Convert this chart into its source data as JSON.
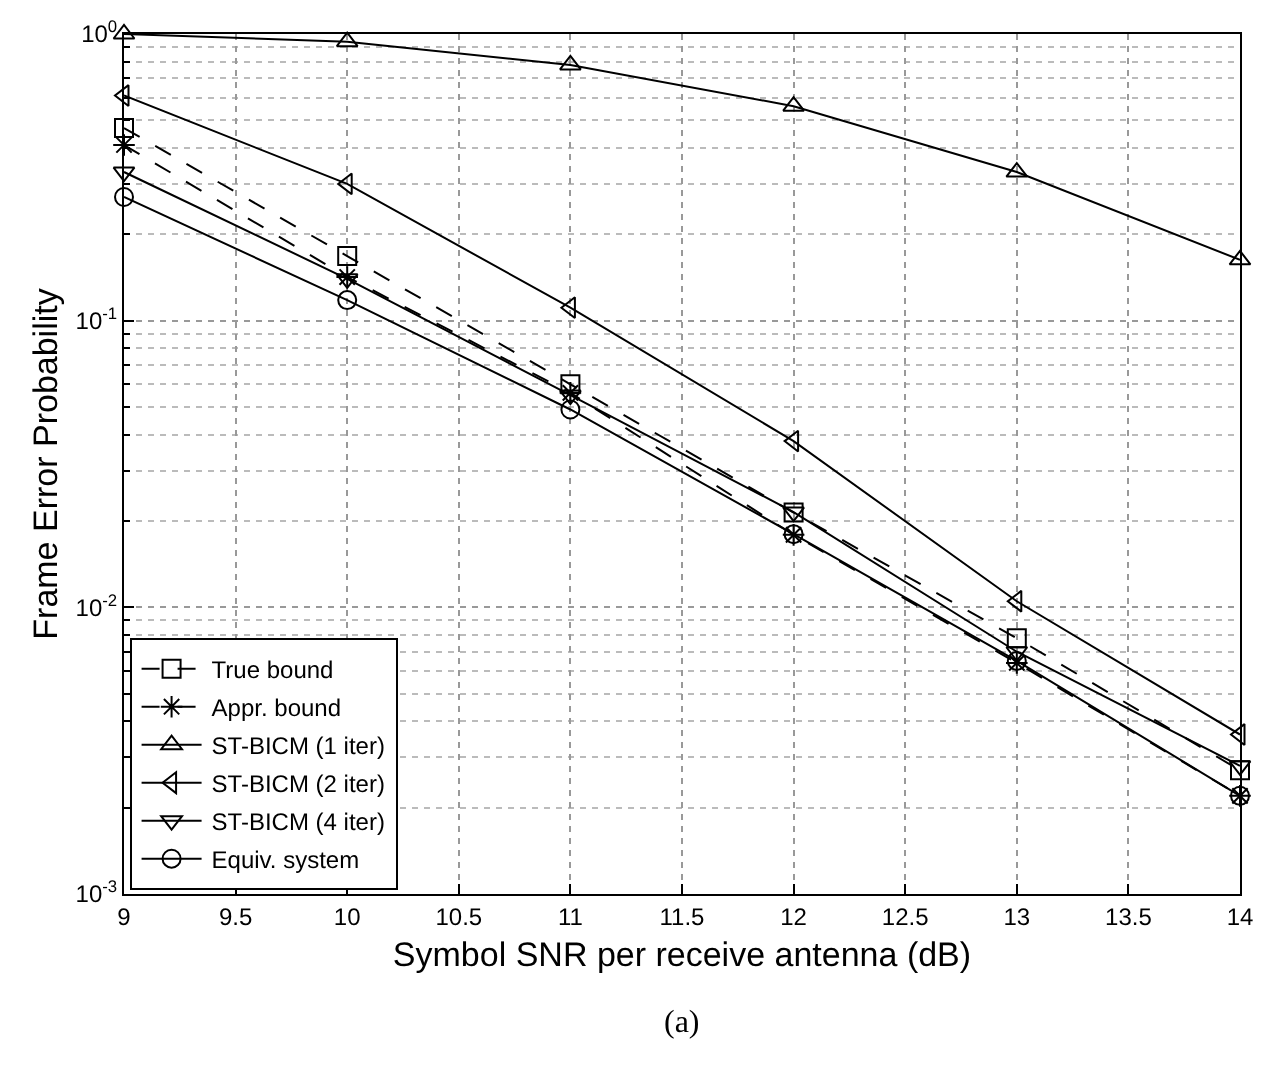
{
  "chart_data": {
    "type": "line",
    "xlabel": "Symbol SNR per receive antenna (dB)",
    "ylabel": "Frame Error Probability",
    "annotations": [
      "(a)"
    ],
    "x": [
      9,
      10,
      11,
      12,
      13,
      14
    ],
    "series": [
      {
        "name": "True bound",
        "color": "#000000",
        "line_style": "dashed",
        "marker": "square",
        "values": [
          0.47,
          0.168,
          0.06,
          0.0214,
          0.0078,
          0.0027
        ]
      },
      {
        "name": "Appr. bound",
        "color": "#000000",
        "line_style": "dashed",
        "marker": "cross",
        "values": [
          0.41,
          0.142,
          0.056,
          0.0179,
          0.0064,
          0.0022
        ]
      },
      {
        "name": "ST-BICM (1 iter)",
        "color": "#000000",
        "line_style": "solid",
        "marker": "triangle-up",
        "values": [
          1.0,
          0.94,
          0.78,
          0.56,
          0.33,
          0.163
        ]
      },
      {
        "name": "ST-BICM (2 iter)",
        "color": "#000000",
        "line_style": "solid",
        "marker": "triangle-left",
        "values": [
          0.61,
          0.3,
          0.111,
          0.038,
          0.0105,
          0.0036
        ]
      },
      {
        "name": "ST-BICM (4 iter)",
        "color": "#000000",
        "line_style": "solid",
        "marker": "triangle-down",
        "values": [
          0.33,
          0.14,
          0.055,
          0.0215,
          0.007,
          0.0028
        ]
      },
      {
        "name": "Equiv. system",
        "color": "#000000",
        "line_style": "solid",
        "marker": "circle",
        "values": [
          0.27,
          0.118,
          0.049,
          0.018,
          0.0065,
          0.0022
        ]
      }
    ],
    "log": "y",
    "xlim": [
      9,
      14
    ],
    "ylim": [
      0.001,
      1
    ],
    "xticks": [
      9,
      9.5,
      10,
      10.5,
      11,
      11.5,
      12,
      12.5,
      13,
      13.5,
      14
    ],
    "yticks": [
      {
        "value": 0.001,
        "label": "10$^{-3}$"
      },
      {
        "value": 0.01,
        "label": "10$^{-2}$"
      },
      {
        "value": 0.1,
        "label": "10$^{-1}$"
      },
      {
        "value": 1,
        "label": "10$^{0}$"
      }
    ],
    "grid": true,
    "legend": "bottom left"
  }
}
